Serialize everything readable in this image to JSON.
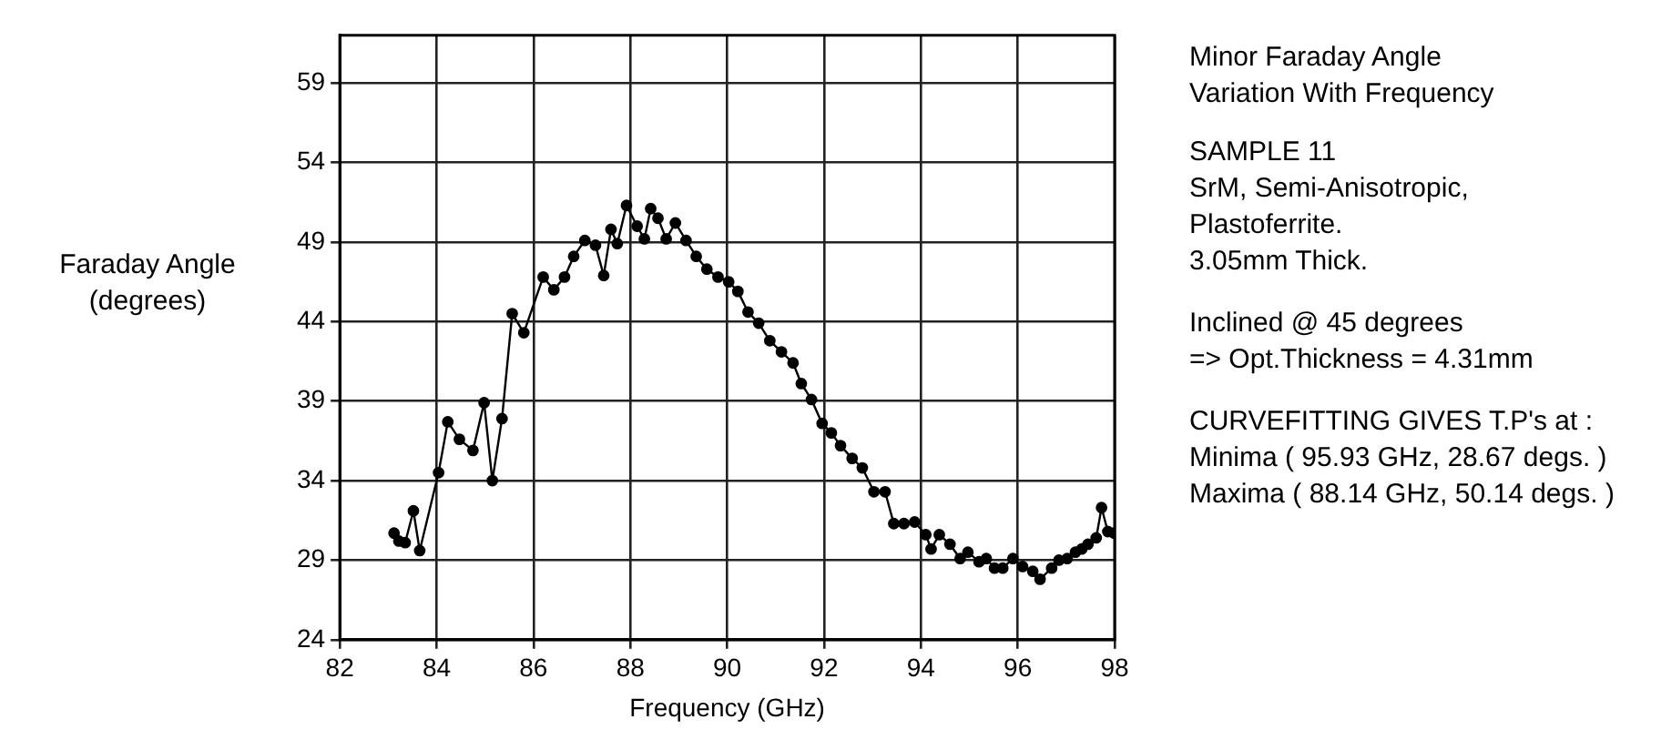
{
  "chart_data": {
    "type": "line",
    "title": "Minor Faraday Angle\nVariation With Frequency",
    "xlabel": "Frequency (GHz)",
    "ylabel": "Faraday Angle\n(degrees)",
    "annotations": [
      "SAMPLE 11\nSrM, Semi-Anisotropic,\nPlastoferrite.\n3.05mm Thick.",
      "Inclined @ 45 degrees\n=> Opt.Thickness = 4.31mm",
      "CURVEFITTING GIVES T.P's at :\nMinima ( 95.93 GHz, 28.67 degs. )\nMaxima ( 88.14 GHz, 50.14 degs. )"
    ],
    "x": [
      83.12,
      83.22,
      83.35,
      83.52,
      83.65,
      84.04,
      84.23,
      84.47,
      84.75,
      84.98,
      85.15,
      85.35,
      85.56,
      85.8,
      86.2,
      86.42,
      86.64,
      86.83,
      87.06,
      87.28,
      87.45,
      87.6,
      87.73,
      87.92,
      88.14,
      88.29,
      88.42,
      88.57,
      88.74,
      88.93,
      89.15,
      89.36,
      89.58,
      89.81,
      90.03,
      90.22,
      90.43,
      90.65,
      90.88,
      91.12,
      91.36,
      91.53,
      91.74,
      91.96,
      92.15,
      92.34,
      92.58,
      92.79,
      93.03,
      93.26,
      93.44,
      93.65,
      93.87,
      94.1,
      94.21,
      94.38,
      94.6,
      94.81,
      94.97,
      95.2,
      95.35,
      95.52,
      95.69,
      95.9,
      96.1,
      96.31,
      96.46,
      96.7,
      96.85,
      97.02,
      97.19,
      97.32,
      97.45,
      97.62,
      97.73,
      97.86,
      97.99
    ],
    "series": [
      {
        "color": "#000000",
        "values": [
          30.7,
          30.2,
          30.1,
          32.1,
          29.6,
          34.5,
          37.7,
          36.6,
          35.9,
          38.9,
          34.0,
          37.9,
          44.5,
          43.3,
          46.8,
          46.0,
          46.8,
          48.1,
          49.1,
          48.8,
          46.9,
          49.8,
          48.9,
          51.3,
          50.0,
          49.2,
          51.1,
          50.5,
          49.2,
          50.2,
          49.1,
          48.1,
          47.3,
          46.8,
          46.5,
          45.9,
          44.6,
          43.9,
          42.8,
          42.1,
          41.4,
          40.1,
          39.1,
          37.6,
          37.0,
          36.2,
          35.4,
          34.8,
          33.3,
          33.3,
          31.3,
          31.3,
          31.4,
          30.6,
          29.7,
          30.6,
          30.0,
          29.1,
          29.5,
          28.9,
          29.1,
          28.5,
          28.5,
          29.1,
          28.6,
          28.3,
          27.8,
          28.5,
          29.0,
          29.1,
          29.5,
          29.7,
          30.0,
          30.4,
          32.3,
          30.8,
          30.7
        ]
      }
    ],
    "xlim": [
      82,
      98
    ],
    "xticks": [
      82,
      84,
      86,
      88,
      90,
      92,
      94,
      96,
      98
    ],
    "ylim": [
      24,
      62
    ],
    "yticks": [
      24,
      29,
      34,
      39,
      44,
      49,
      54,
      59
    ],
    "grid": true,
    "legend": false,
    "marker": "circle",
    "line_style": "solid"
  }
}
